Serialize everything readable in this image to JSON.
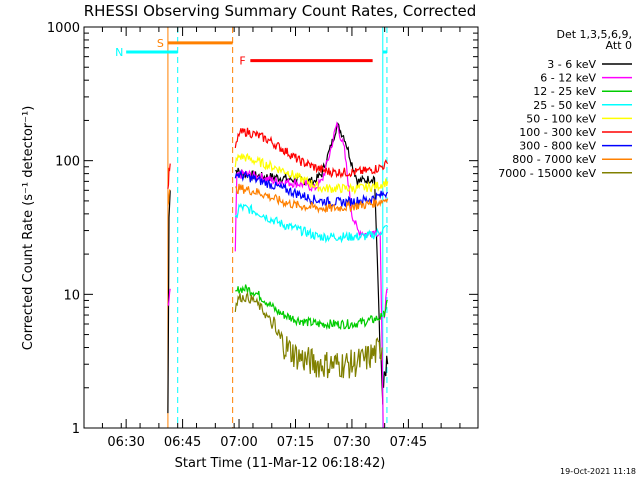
{
  "chart_data": {
    "type": "line",
    "title": "RHESSI Observing Summary Count Rates, Corrected",
    "xlabel": "Start Time (11-Mar-12 06:18:42)",
    "ylabel": "Corrected Count Rate (s⁻¹ detector⁻¹)",
    "yscale": "log",
    "ylim": [
      1,
      1000
    ],
    "xlim_minutes_from_start": [
      0,
      69.3
    ],
    "x_tick_labels": [
      "06:30",
      "06:45",
      "07:00",
      "07:15",
      "07:30",
      "07:45"
    ],
    "x_tick_minutes": [
      11.3,
      26.3,
      41.3,
      56.3,
      71.3,
      86.3
    ],
    "y_tick_labels": [
      "1",
      "10",
      "100",
      "1000"
    ],
    "y_tick_values": [
      1,
      10,
      100,
      1000
    ],
    "legend_header": [
      "Det 1,3,5,6,9,",
      "Att 0"
    ],
    "legend_placement": "right",
    "series": [
      {
        "name": "3 - 6 keV",
        "color": "#000000",
        "segments": [
          {
            "x": [
              11.1,
              11.4,
              11.7
            ],
            "y": [
              1.3,
              40,
              60
            ]
          },
          {
            "x": [
              29.0,
              31,
              33,
              36,
              40,
              45,
              50,
              52,
              54.5,
              56,
              58,
              60,
              61.5,
              64,
              66,
              67.5,
              68.2
            ],
            "y": [
              85,
              80,
              78,
              76,
              75,
              72,
              70,
              80,
              130,
              185,
              150,
              95,
              70,
              72,
              75,
              4,
              1.5
            ]
          },
          {
            "x": [
              68.4,
              69.0,
              69.5
            ],
            "y": [
              2,
              2.5,
              3
            ]
          }
        ]
      },
      {
        "name": "6 - 12 keV",
        "color": "#ff00ff",
        "segments": [
          {
            "x": [
              11.1,
              11.4,
              11.7
            ],
            "y": [
              8,
              9,
              11
            ]
          },
          {
            "x": [
              29.0,
              29.4,
              31,
              33,
              36,
              40,
              45,
              48,
              50,
              52,
              54,
              56,
              58,
              60,
              61.5,
              64,
              66,
              67.5,
              68.3
            ],
            "y": [
              20,
              75,
              80,
              78,
              75,
              70,
              68,
              66,
              62,
              70,
              110,
              190,
              120,
              40,
              30,
              28,
              30,
              28,
              1
            ]
          },
          {
            "x": [
              68.6,
              69.0,
              69.5
            ],
            "y": [
              7,
              9,
              11
            ]
          }
        ]
      },
      {
        "name": "12 - 25 keV",
        "color": "#00cc00",
        "segments": [
          {
            "x": [
              29.0,
              30,
              32,
              34,
              36,
              38,
              40,
              42,
              45,
              48,
              51,
              54,
              57,
              60,
              63,
              66,
              68.0
            ],
            "y": [
              10,
              11,
              11,
              10.5,
              9.5,
              8.5,
              7.5,
              7.0,
              6.5,
              6.2,
              6.0,
              6.0,
              6.0,
              6.0,
              6.2,
              6.5,
              6.8
            ]
          },
          {
            "x": [
              68.4,
              69.0,
              69.5
            ],
            "y": [
              7,
              8,
              9
            ]
          }
        ]
      },
      {
        "name": "25 - 50 keV",
        "color": "#00ffff",
        "segments": [
          {
            "x": [
              29.0,
              30,
              32,
              34,
              36,
              38,
              40,
              42,
              45,
              48,
              51,
              54,
              57,
              60,
              63,
              66,
              68.0,
              69.5
            ],
            "y": [
              35,
              45,
              44,
              42,
              40,
              37,
              35,
              33,
              31,
              29,
              27,
              27,
              27,
              27,
              27,
              28,
              30,
              32
            ]
          }
        ]
      },
      {
        "name": "50 - 100 keV",
        "color": "#ffff00",
        "segments": [
          {
            "x": [
              29.0,
              30,
              32,
              34,
              36,
              38,
              40,
              43,
              46,
              49,
              52,
              55,
              58,
              61,
              64,
              67,
              69.5
            ],
            "y": [
              95,
              108,
              105,
              100,
              96,
              92,
              88,
              82,
              74,
              68,
              62,
              62,
              62,
              62,
              63,
              65,
              70
            ]
          }
        ]
      },
      {
        "name": "100 - 300 keV",
        "color": "#ff0000",
        "segments": [
          {
            "x": [
              11.1,
              11.4,
              11.7
            ],
            "y": [
              60,
              80,
              95
            ]
          },
          {
            "x": [
              29.0,
              30,
              32,
              34,
              36,
              38,
              40,
              43,
              46,
              49,
              52,
              55,
              58,
              61,
              64,
              67,
              69.5
            ],
            "y": [
              120,
              160,
              165,
              158,
              150,
              142,
              130,
              115,
              100,
              92,
              85,
              82,
              82,
              82,
              84,
              88,
              95
            ]
          }
        ]
      },
      {
        "name": "300 - 800 keV",
        "color": "#0000ff",
        "segments": [
          {
            "x": [
              29.0,
              30,
              32,
              34,
              36,
              38,
              40,
              43,
              46,
              49,
              52,
              55,
              58,
              61,
              64,
              67,
              69.5
            ],
            "y": [
              80,
              78,
              76,
              73,
              70,
              67,
              64,
              60,
              56,
              52,
              50,
              49,
              49,
              50,
              51,
              54,
              58
            ]
          }
        ]
      },
      {
        "name": "800 - 7000 keV",
        "color": "#ff8000",
        "segments": [
          {
            "x": [
              11.1,
              11.4,
              11.7
            ],
            "y": [
              50,
              55,
              60
            ]
          },
          {
            "x": [
              29.0,
              30,
              32,
              34,
              36,
              38,
              40,
              43,
              46,
              49,
              52,
              55,
              58,
              61,
              64,
              67,
              69.5
            ],
            "y": [
              60,
              62,
              61,
              59,
              57,
              54,
              51,
              48,
              46,
              45,
              44,
              44,
              45,
              46,
              47,
              49,
              52
            ]
          }
        ]
      },
      {
        "name": "7000 - 15000 keV",
        "color": "#808000",
        "segments": [
          {
            "x": [
              29.0,
              30,
              32,
              34,
              36,
              38,
              40,
              42,
              45,
              48,
              51,
              54,
              57,
              60,
              63,
              66,
              68.0
            ],
            "y": [
              8,
              9.5,
              9.5,
              9.0,
              7.8,
              6.5,
              5.0,
              4.2,
              3.5,
              3.2,
              3.0,
              3.0,
              3.0,
              3.0,
              3.2,
              3.6,
              4.0
            ]
          }
        ]
      }
    ],
    "status_bars": [
      {
        "label": "S",
        "color": "#ff8000",
        "x_start": 11.1,
        "x_end": 28.3,
        "y": 760,
        "style": "solid"
      },
      {
        "label": "N",
        "color": "#00ffff",
        "x_start": 0,
        "x_end": 13.7,
        "y": 650,
        "style": "solid"
      },
      {
        "label": "",
        "color": "#00ffff",
        "x_start": 68.2,
        "x_end": 69.3,
        "y": 650,
        "style": "solid"
      },
      {
        "label": "F",
        "color": "#ff0000",
        "x_start": 33.0,
        "x_end": 65.5,
        "y": 560,
        "style": "solid"
      }
    ],
    "vertical_markers": [
      {
        "color": "#ff8000",
        "x": 11.1,
        "style": "solid"
      },
      {
        "color": "#ff8000",
        "x": 28.3,
        "style": "dashed"
      },
      {
        "color": "#00ffff",
        "x": 13.7,
        "style": "dashed"
      },
      {
        "color": "#00ffff",
        "x": 68.2,
        "style": "solid"
      },
      {
        "color": "#00ffff",
        "x": 69.3,
        "style": "dashed"
      }
    ],
    "grid": false
  },
  "footer": {
    "timestamp": "19-Oct-2021 11:18"
  }
}
